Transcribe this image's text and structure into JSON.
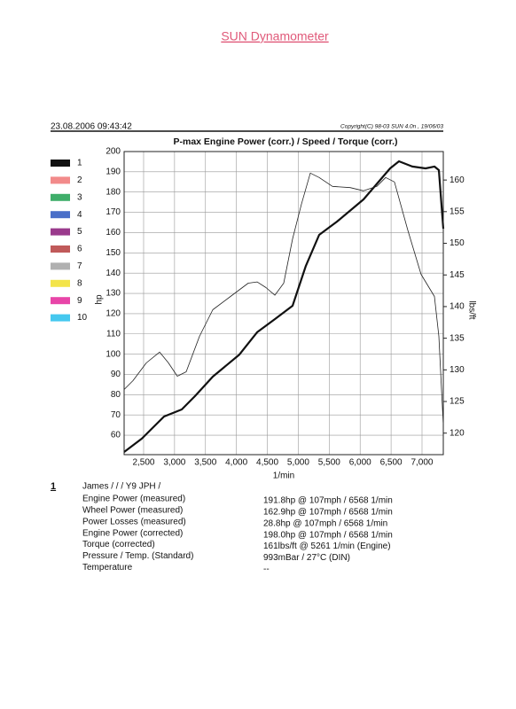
{
  "header": {
    "title": "SUN Dynamometer",
    "timestamp": "23.08.2006 09:43:42",
    "copyright": "Copyright(C) 98-03 SUN 4.0n , 19/06/03"
  },
  "chart_data": {
    "type": "line",
    "title": "P-max Engine Power (corr.) / Speed / Torque (corr.)",
    "x_label": "1/min",
    "y_label": "hp",
    "y2_label": "lbs/ft",
    "xlim": [
      2185,
      7344
    ],
    "xticks": [
      {
        "value": 2500,
        "label": "2,500"
      },
      {
        "value": 3000,
        "label": "3,000"
      },
      {
        "value": 3500,
        "label": "3,500"
      },
      {
        "value": 4000,
        "label": "4,000"
      },
      {
        "value": 4500,
        "label": "4,500"
      },
      {
        "value": 5000,
        "label": "5,000"
      },
      {
        "value": 5500,
        "label": "5,500"
      },
      {
        "value": 6000,
        "label": "6,000"
      },
      {
        "value": 6500,
        "label": "6,500"
      },
      {
        "value": 7000,
        "label": "7,000"
      }
    ],
    "ylim": [
      50.4,
      200
    ],
    "yticks": [
      60,
      70,
      80,
      90,
      100,
      110,
      120,
      130,
      140,
      150,
      160,
      170,
      180,
      190,
      200
    ],
    "y2lim": [
      116.6,
      164.5
    ],
    "y2ticks": [
      120,
      125,
      130,
      135,
      140,
      145,
      150,
      155,
      160
    ],
    "grid": true,
    "series": [
      {
        "color": "#111111",
        "line_width": 2.2,
        "x": [
          2185,
          2472,
          2830,
          3116,
          3331,
          3618,
          4048,
          4335,
          4621,
          4908,
          5123,
          5338,
          5624,
          6054,
          6484,
          6627,
          6842,
          7057,
          7200,
          7272,
          7344
        ],
        "values": [
          51.7,
          58.3,
          69.2,
          72.7,
          79.3,
          88.9,
          99.8,
          110.8,
          117.3,
          123.9,
          143.6,
          158.9,
          165.4,
          176.4,
          191.7,
          195.2,
          192.6,
          191.7,
          192.6,
          190.8,
          161.9
        ]
      },
      {
        "color": "#222222",
        "line_width": 0.8,
        "axis": "y2",
        "x": [
          2185,
          2328,
          2543,
          2758,
          2902,
          3045,
          3188,
          3403,
          3618,
          3905,
          4191,
          4335,
          4478,
          4621,
          4764,
          4908,
          5051,
          5194,
          5338,
          5553,
          5839,
          6054,
          6269,
          6412,
          6555,
          6770,
          6985,
          7200,
          7272,
          7344
        ],
        "values": [
          126.9,
          128.3,
          131.1,
          132.8,
          131.1,
          129.0,
          129.7,
          135.3,
          139.5,
          141.6,
          143.7,
          143.9,
          143.0,
          141.8,
          143.7,
          150.7,
          156.2,
          161.1,
          160.4,
          159.0,
          158.8,
          158.3,
          159.0,
          160.4,
          159.7,
          152.1,
          145.1,
          141.6,
          135.3,
          121.3
        ]
      }
    ],
    "legend": [
      {
        "label": "1",
        "color": "#111111"
      },
      {
        "label": "2",
        "color": "#f28a8a"
      },
      {
        "label": "3",
        "color": "#3fae6a"
      },
      {
        "label": "4",
        "color": "#4a6fc8"
      },
      {
        "label": "5",
        "color": "#9a3a8c"
      },
      {
        "label": "6",
        "color": "#c05a5a"
      },
      {
        "label": "7",
        "color": "#b0b0b0"
      },
      {
        "label": "8",
        "color": "#f3e44a"
      },
      {
        "label": "9",
        "color": "#e845a8"
      },
      {
        "label": "10",
        "color": "#45c8ef"
      }
    ]
  },
  "results": {
    "run": "1",
    "name": "James / / / Y9 JPH /",
    "rows": [
      [
        "Engine Power (measured)",
        "191.8hp @ 107mph / 6568 1/min"
      ],
      [
        "Wheel Power (measured)",
        "162.9hp @ 107mph / 6568 1/min"
      ],
      [
        "Power Losses (measured)",
        "28.8hp @ 107mph / 6568 1/min"
      ],
      [
        "Engine Power (corrected)",
        "198.0hp @ 107mph / 6568 1/min"
      ],
      [
        "Torque (corrected)",
        "161lbs/ft @ 5261 1/min (Engine)"
      ],
      [
        "Pressure / Temp. (Standard)",
        "993mBar / 27°C (DIN)"
      ],
      [
        "Temperature",
        "--"
      ]
    ]
  }
}
